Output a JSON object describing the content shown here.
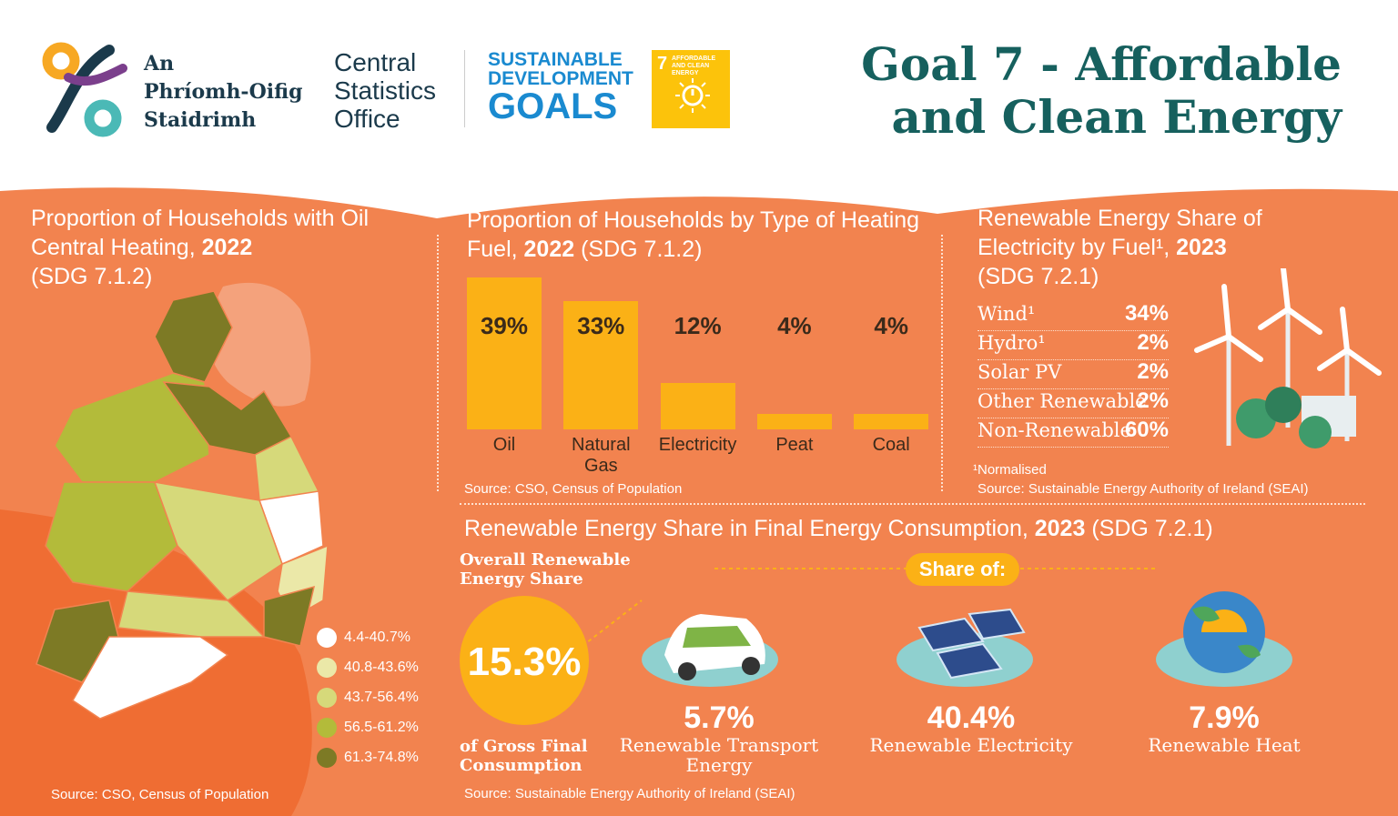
{
  "header": {
    "logo_irish": [
      "An",
      "Phríomh-Oifig",
      "Staidrimh"
    ],
    "logo_english": [
      "Central",
      "Statistics",
      "Office"
    ],
    "sdg": [
      "SUSTAINABLE",
      "DEVELOPMENT",
      "GOALS"
    ],
    "badge_number": "7",
    "badge_text": "AFFORDABLE AND CLEAN ENERGY",
    "title": [
      "Goal 7 - Affordable",
      "and Clean Energy"
    ]
  },
  "map_panel": {
    "title": "Proportion of Households with Oil Central Heating, ",
    "year": "2022",
    "code": "(SDG 7.1.2)",
    "legend": [
      {
        "label": "4.4-40.7%",
        "color": "#ffffff"
      },
      {
        "label": "40.8-43.6%",
        "color": "#ebe8a8"
      },
      {
        "label": "43.7-56.4%",
        "color": "#d6d97a"
      },
      {
        "label": "56.5-61.2%",
        "color": "#b3bb3a"
      },
      {
        "label": "61.3-74.8%",
        "color": "#7d7a25"
      }
    ],
    "source": "Source: CSO, Census of Population"
  },
  "chart_data": {
    "type": "bar",
    "title": "Proportion of Households by Type of Heating Fuel, ",
    "year": "2022",
    "code": "(SDG 7.1.2)",
    "categories": [
      "Oil",
      "Natural Gas",
      "Electricity",
      "Peat",
      "Coal"
    ],
    "values": [
      39,
      33,
      12,
      4,
      4
    ],
    "value_labels": [
      "39%",
      "33%",
      "12%",
      "4%",
      "4%"
    ],
    "color": "#fbb116",
    "source": "Source: CSO, Census of Population"
  },
  "electricity_panel": {
    "title": "Renewable Energy Share of Electricity by Fuel¹, ",
    "year": "2023",
    "code": "(SDG 7.2.1)",
    "rows": [
      {
        "label": "Wind¹",
        "value": "34%"
      },
      {
        "label": "Hydro¹",
        "value": "2%"
      },
      {
        "label": "Solar PV",
        "value": "2%"
      },
      {
        "label": "Other Renewable",
        "value": "2%"
      },
      {
        "label": "Non-Renewable",
        "value": "60%"
      }
    ],
    "note": "¹Normalised",
    "source": "Source: Sustainable Energy Authority of Ireland (SEAI)"
  },
  "consumption_panel": {
    "title": "Renewable Energy Share in Final Energy Consumption, ",
    "year": "2023",
    "code": "(SDG 7.2.1)",
    "overall_label": "Overall Renewable Energy Share",
    "overall_value": "15.3%",
    "overall_caption": "of Gross Final Consumption",
    "share_of": "Share of:",
    "items": [
      {
        "value": "5.7%",
        "label": "Renewable Transport Energy"
      },
      {
        "value": "40.4%",
        "label": "Renewable Electricity"
      },
      {
        "value": "7.9%",
        "label": "Renewable Heat"
      }
    ],
    "source": "Source: Sustainable Energy Authority of Ireland (SEAI)"
  }
}
